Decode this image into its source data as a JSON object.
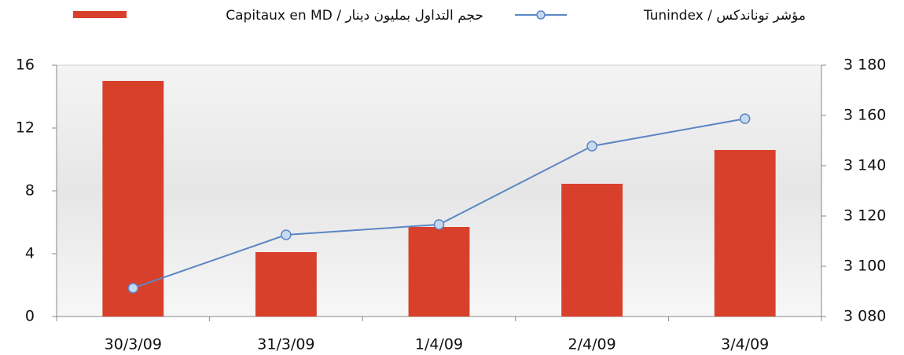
{
  "chart_data": {
    "type": "bar_line",
    "categories": [
      "30/3/09",
      "31/3/09",
      "1/4/09",
      "2/4/09",
      "3/4/09"
    ],
    "series": [
      {
        "name": "حجم التداول بمليون دينار / Capitaux en MD",
        "type": "bar",
        "color": "#d9402b",
        "values": [
          15.0,
          4.1,
          5.7,
          8.45,
          10.6
        ]
      },
      {
        "name": "مؤشر توناندكس / Tunindex",
        "type": "line",
        "axis": "y2",
        "color": "#5b86c4",
        "values": [
          3091.3,
          3112.5,
          3116.6,
          3147.8,
          3158.7
        ]
      }
    ],
    "ylim": [
      0,
      16
    ],
    "yticks": [
      0,
      4,
      8,
      12,
      16
    ],
    "y2lim": [
      3080,
      3180
    ],
    "y2ticks": [
      {
        "value": 3080,
        "label": "3 080"
      },
      {
        "value": 3100,
        "label": "3 100"
      },
      {
        "value": 3120,
        "label": "3 120"
      },
      {
        "value": 3140,
        "label": "3 140"
      },
      {
        "value": 3160,
        "label": "3 160"
      },
      {
        "value": 3180,
        "label": "3 180"
      }
    ]
  }
}
